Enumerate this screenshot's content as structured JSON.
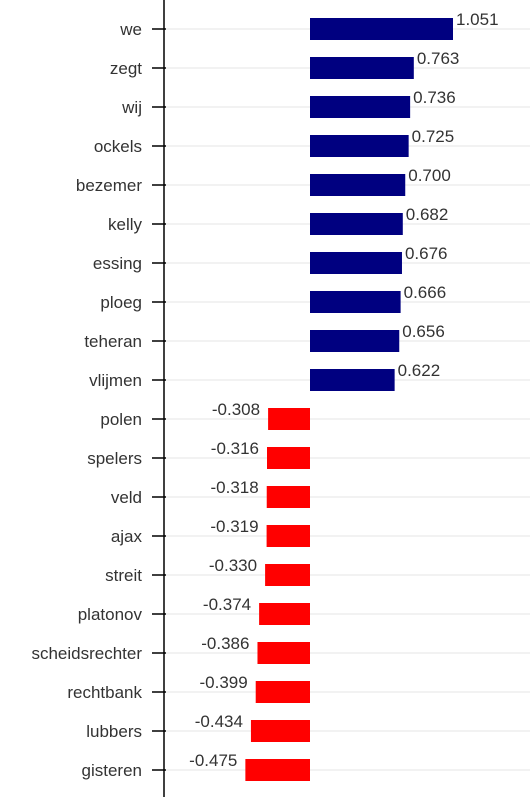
{
  "chart_data": {
    "type": "bar",
    "orientation": "horizontal",
    "categories": [
      "we",
      "zegt",
      "wij",
      "ockels",
      "bezemer",
      "kelly",
      "essing",
      "ploeg",
      "teheran",
      "vlijmen",
      "polen",
      "spelers",
      "veld",
      "ajax",
      "streit",
      "platonov",
      "scheidsrechter",
      "rechtbank",
      "lubbers",
      "gisteren"
    ],
    "values": [
      1.051,
      0.763,
      0.736,
      0.725,
      0.7,
      0.682,
      0.676,
      0.666,
      0.656,
      0.622,
      -0.308,
      -0.316,
      -0.318,
      -0.319,
      -0.33,
      -0.374,
      -0.386,
      -0.399,
      -0.434,
      -0.475
    ],
    "value_labels": [
      "1.051",
      "0.763",
      "0.736",
      "0.725",
      "0.700",
      "0.682",
      "0.676",
      "0.666",
      "0.656",
      "0.622",
      "-0.308",
      "-0.316",
      "-0.318",
      "-0.319",
      "-0.330",
      "-0.374",
      "-0.386",
      "-0.399",
      "-0.434",
      "-0.475"
    ],
    "colors": {
      "positive": "#000080",
      "negative": "#ff0000",
      "grid": "#e6e6e6",
      "axis": "#000000"
    },
    "grid": true,
    "title": "",
    "xlabel": "",
    "ylabel": ""
  }
}
